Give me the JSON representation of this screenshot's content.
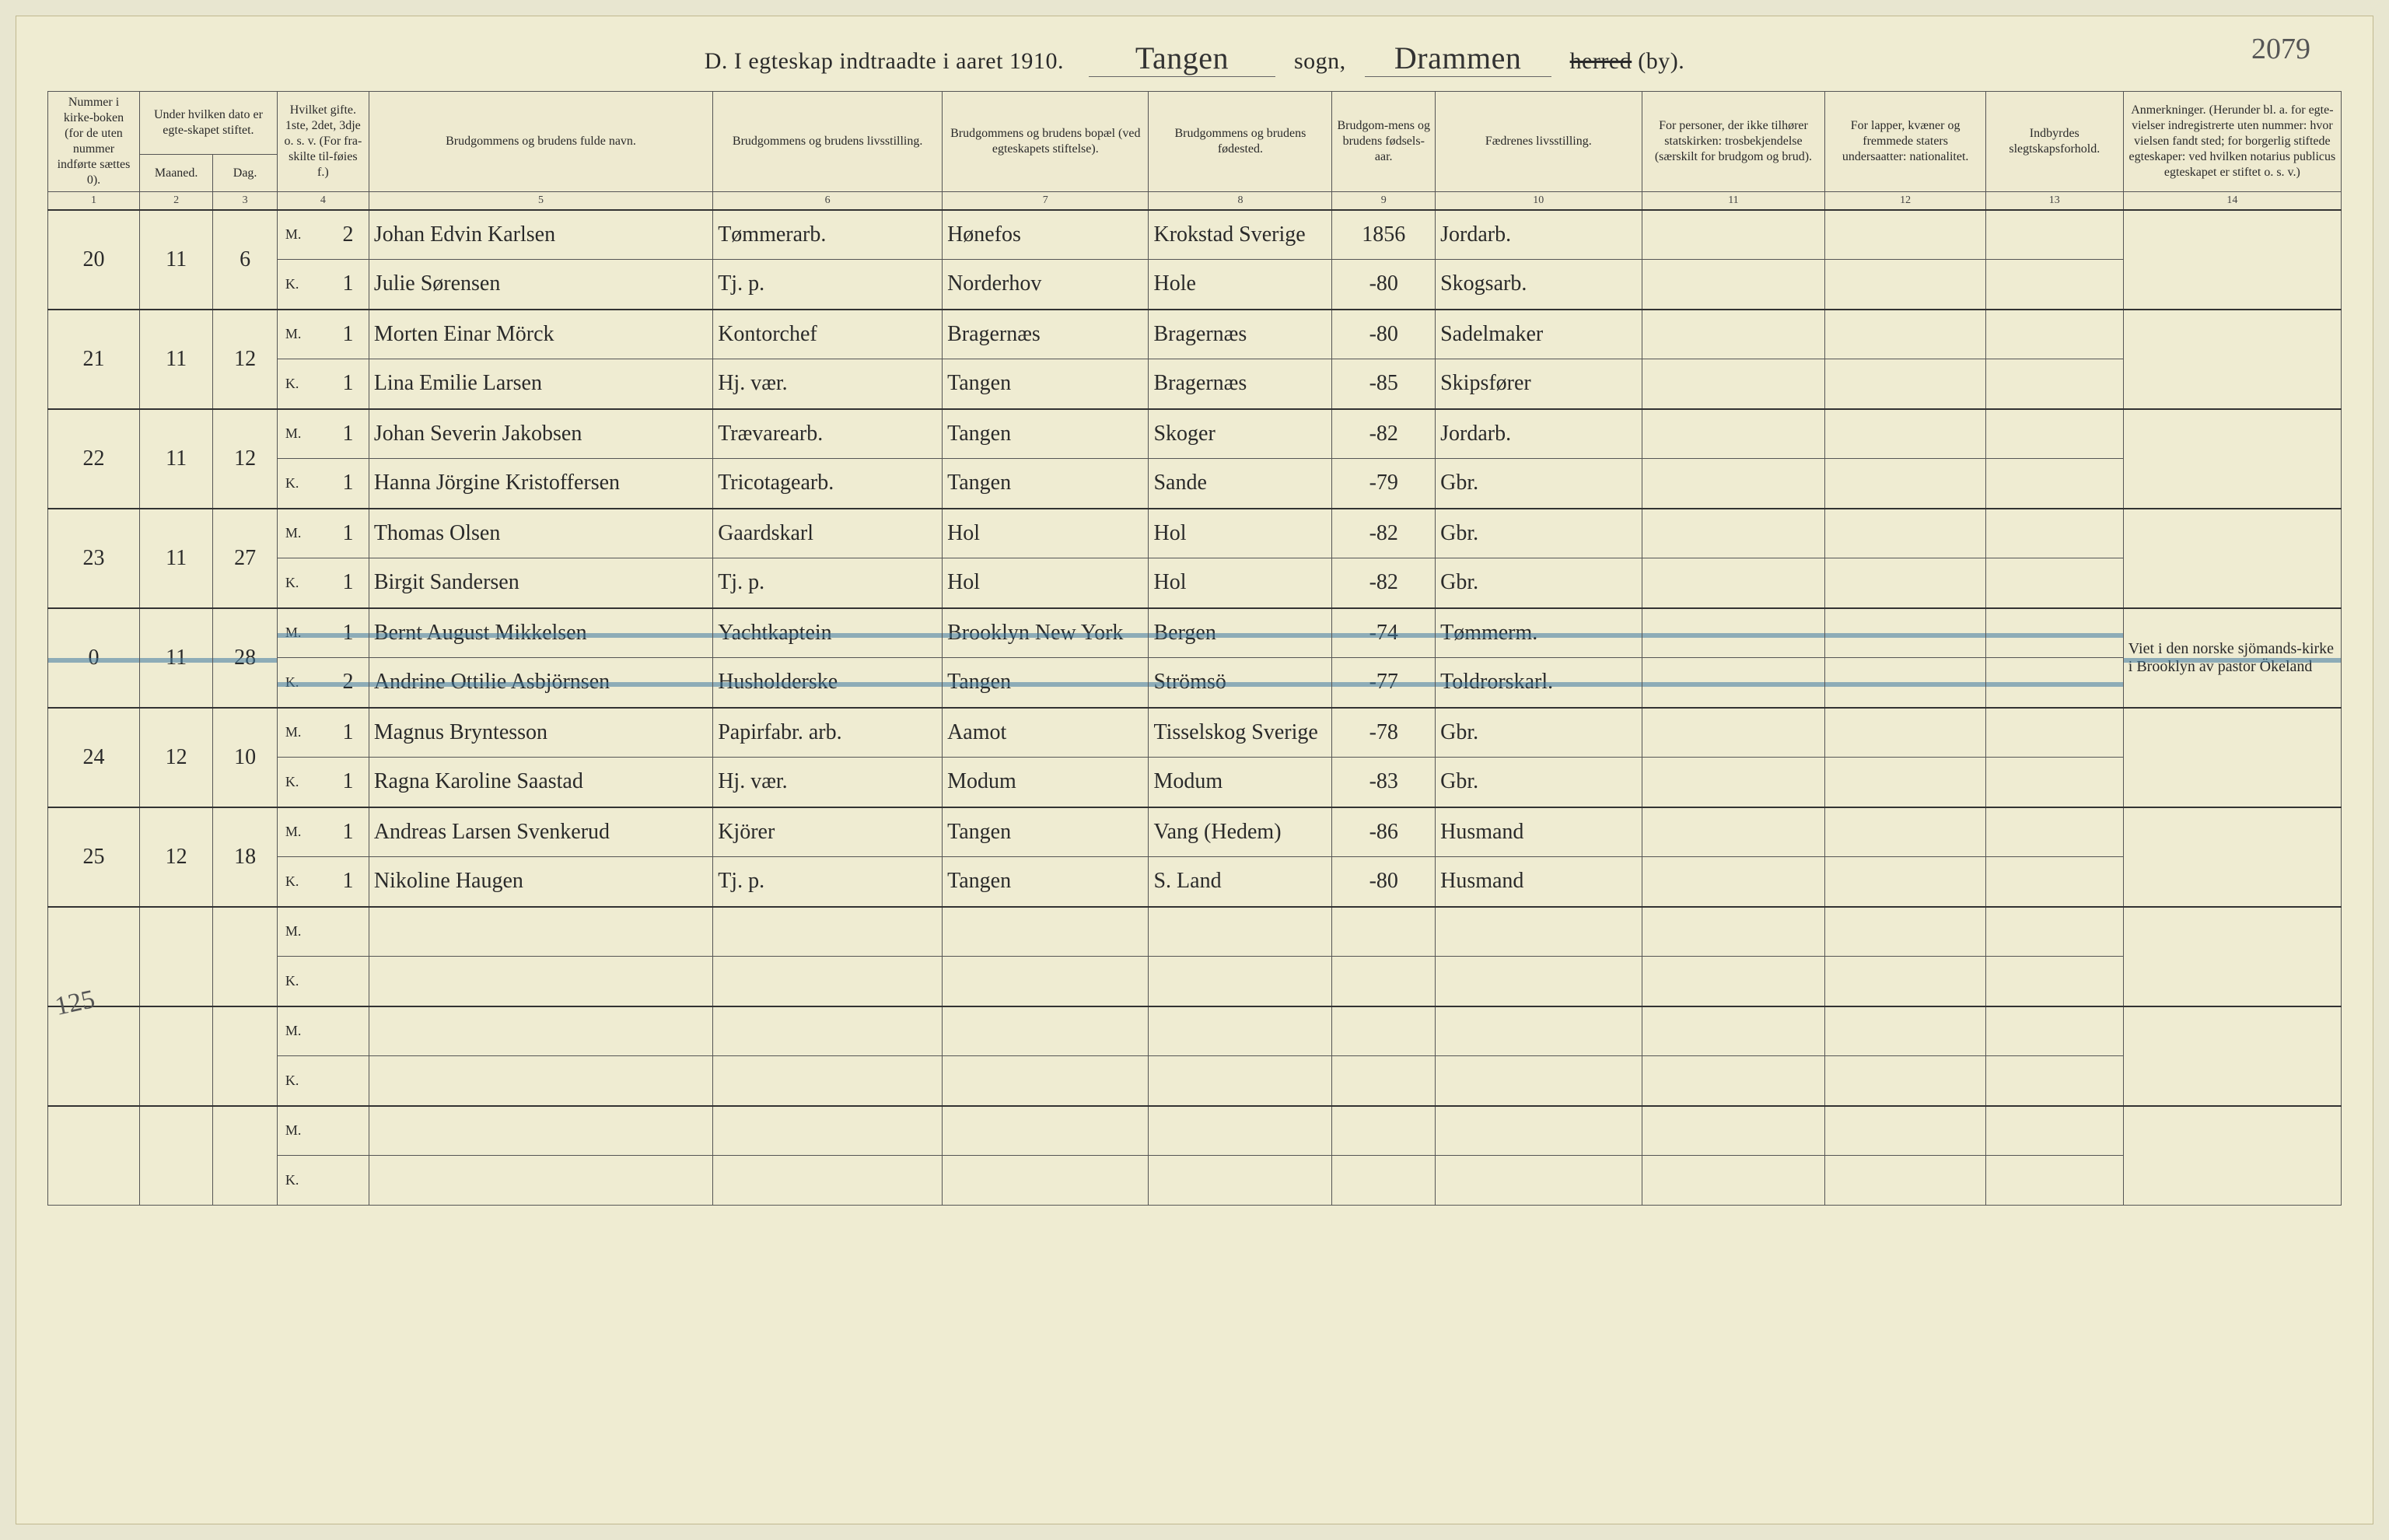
{
  "page_number_top": "2079",
  "title": {
    "prefix": "D.  I egteskap indtraadte i aaret 191",
    "year_digit_hand": "0",
    "period": ".",
    "sogn_value": "Tangen",
    "sogn_label": "sogn,",
    "herred_value": "Drammen",
    "herred_label_struck": "herred",
    "herred_label_tail": " (by)."
  },
  "headers": {
    "c1": "Nummer i kirke-boken (for de uten nummer indførte sættes 0).",
    "c2_group": "Under hvilken dato er egte-skapet stiftet.",
    "c2": "Maaned.",
    "c3": "Dag.",
    "c4": "Hvilket gifte. 1ste, 2det, 3dje o. s. v. (For fra-skilte til-føies f.)",
    "c5": "Brudgommens og brudens fulde navn.",
    "c6": "Brudgommens og brudens livsstilling.",
    "c7": "Brudgommens og brudens bopæl (ved egteskapets stiftelse).",
    "c8": "Brudgommens og brudens fødested.",
    "c9": "Brudgom-mens og brudens fødsels-aar.",
    "c10": "Fædrenes livsstilling.",
    "c11": "For personer, der ikke tilhører statskirken: trosbekjendelse (særskilt for brudgom og brud).",
    "c12": "For lapper, kvæner og fremmede staters undersaatter: nationalitet.",
    "c13": "Indbyrdes slegtskapsforhold.",
    "c14": "Anmerkninger. (Herunder bl. a. for egte-vielser indregistrerte uten nummer: hvor vielsen fandt sted; for borgerlig stiftede egteskaper: ved hvilken notarius publicus egteskapet er stiftet o. s. v.)"
  },
  "colnums": [
    "1",
    "2",
    "3",
    "4",
    "5",
    "6",
    "7",
    "8",
    "9",
    "10",
    "11",
    "12",
    "13",
    "14"
  ],
  "margin_note": "125",
  "mk_labels": {
    "M": "M.",
    "K": "K."
  },
  "rows": [
    {
      "num": "20",
      "month": "11",
      "day": "6",
      "m": {
        "gift": "2",
        "name": "Johan Edvin Karlsen",
        "occ": "Tømmerarb.",
        "res": "Hønefos",
        "birthplace": "Krokstad Sverige",
        "year": "1856",
        "father": "Jordarb."
      },
      "k": {
        "gift": "1",
        "name": "Julie Sørensen",
        "occ": "Tj. p.",
        "res": "Norderhov",
        "birthplace": "Hole",
        "year": "-80",
        "father": "Skogsarb."
      }
    },
    {
      "num": "21",
      "month": "11",
      "day": "12",
      "m": {
        "gift": "1",
        "name": "Morten Einar Mörck",
        "occ": "Kontorchef",
        "res": "Bragernæs",
        "birthplace": "Bragernæs",
        "year": "-80",
        "father": "Sadelmaker"
      },
      "k": {
        "gift": "1",
        "name": "Lina Emilie Larsen",
        "occ": "Hj. vær.",
        "res": "Tangen",
        "birthplace": "Bragernæs",
        "year": "-85",
        "father": "Skipsfører"
      }
    },
    {
      "num": "22",
      "month": "11",
      "day": "12",
      "m": {
        "gift": "1",
        "name": "Johan Severin Jakobsen",
        "occ": "Trævarearb.",
        "res": "Tangen",
        "birthplace": "Skoger",
        "year": "-82",
        "father": "Jordarb."
      },
      "k": {
        "gift": "1",
        "name": "Hanna Jörgine Kristoffersen",
        "occ": "Tricotagearb.",
        "res": "Tangen",
        "birthplace": "Sande",
        "year": "-79",
        "father": "Gbr."
      }
    },
    {
      "num": "23",
      "month": "11",
      "day": "27",
      "m": {
        "gift": "1",
        "name": "Thomas Olsen",
        "occ": "Gaardskarl",
        "res": "Hol",
        "birthplace": "Hol",
        "year": "-82",
        "father": "Gbr."
      },
      "k": {
        "gift": "1",
        "name": "Birgit Sandersen",
        "occ": "Tj. p.",
        "res": "Hol",
        "birthplace": "Hol",
        "year": "-82",
        "father": "Gbr."
      }
    },
    {
      "num": "0",
      "month": "11",
      "day": "28",
      "struck": true,
      "m": {
        "gift": "1",
        "name": "Bernt August Mikkelsen",
        "occ": "Yachtkaptein",
        "res": "Brooklyn New York",
        "birthplace": "Bergen",
        "year": "-74",
        "father": "Tømmerm."
      },
      "k": {
        "gift": "2",
        "name": "Andrine Ottilie Asbjörnsen",
        "occ": "Husholderske",
        "res": "Tangen",
        "birthplace": "Strömsö",
        "year": "-77",
        "father": "Toldrorskarl."
      },
      "note": "Viet i den norske sjömands-kirke i Brooklyn av pastor Ökeland"
    },
    {
      "num": "24",
      "month": "12",
      "day": "10",
      "m": {
        "gift": "1",
        "name": "Magnus Bryntesson",
        "occ": "Papirfabr. arb.",
        "res": "Aamot",
        "birthplace": "Tisselskog Sverige",
        "year": "-78",
        "father": "Gbr."
      },
      "k": {
        "gift": "1",
        "name": "Ragna Karoline Saastad",
        "occ": "Hj. vær.",
        "res": "Modum",
        "birthplace": "Modum",
        "year": "-83",
        "father": "Gbr."
      }
    },
    {
      "num": "25",
      "month": "12",
      "day": "18",
      "m": {
        "gift": "1",
        "name": "Andreas Larsen Svenkerud",
        "occ": "Kjörer",
        "res": "Tangen",
        "birthplace": "Vang (Hedem)",
        "year": "-86",
        "father": "Husmand"
      },
      "k": {
        "gift": "1",
        "name": "Nikoline Haugen",
        "occ": "Tj. p.",
        "res": "Tangen",
        "birthplace": "S. Land",
        "year": "-80",
        "father": "Husmand"
      }
    }
  ],
  "empty_pairs": 3,
  "colors": {
    "paper": "#efecd2",
    "ink": "#2a2a2a",
    "rule": "#555555",
    "strike": "rgba(60,120,160,0.55)"
  },
  "typography": {
    "header_fontsize_pt": 12,
    "body_script_fontsize_pt": 21,
    "title_fontsize_pt": 22
  }
}
